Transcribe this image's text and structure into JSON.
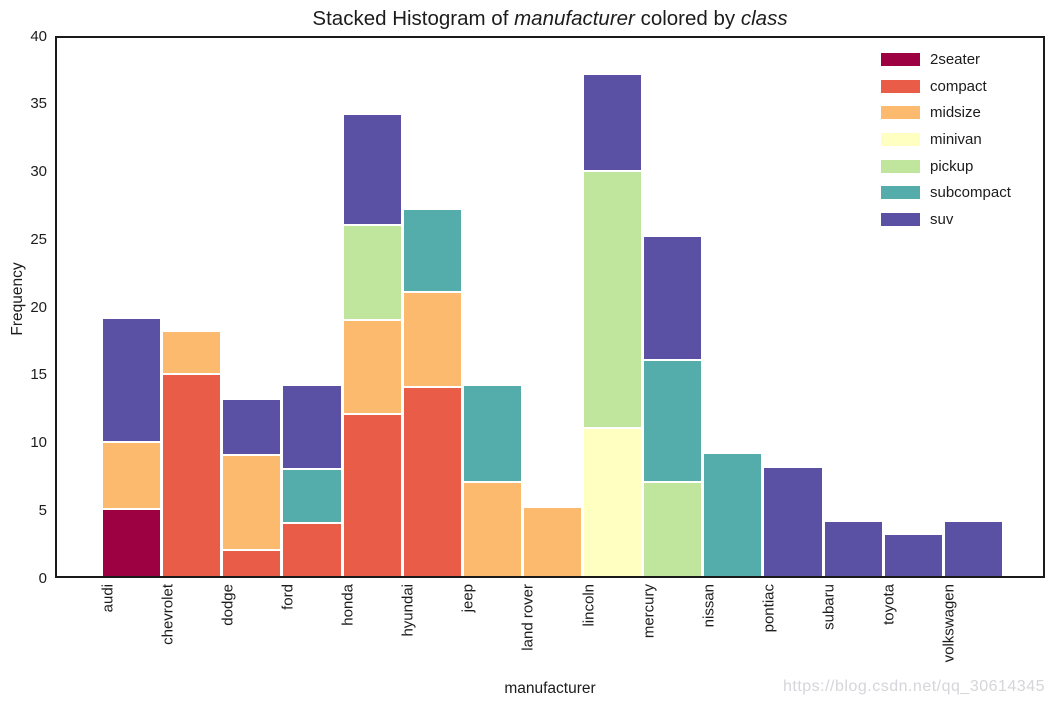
{
  "title": {
    "parts": [
      {
        "text": "Stacked Histogram of ",
        "italic": false
      },
      {
        "text": "manufacturer",
        "italic": true
      },
      {
        "text": " colored by ",
        "italic": false
      },
      {
        "text": "class",
        "italic": true
      }
    ],
    "plain": "Stacked Histogram of manufacturer colored by class"
  },
  "watermark": "https://blog.csdn.net/qq_30614345",
  "chart_data": {
    "type": "bar",
    "stacked": true,
    "title": "Stacked Histogram of manufacturer colored by class",
    "xlabel": "manufacturer",
    "ylabel": "Frequency",
    "ylim": [
      0,
      40
    ],
    "yticks": [
      0,
      5,
      10,
      15,
      20,
      25,
      30,
      35,
      40
    ],
    "grid": false,
    "legend_position": "upper right",
    "categories": [
      "audi",
      "chevrolet",
      "dodge",
      "ford",
      "honda",
      "hyundai",
      "jeep",
      "land rover",
      "lincoln",
      "mercury",
      "nissan",
      "pontiac",
      "subaru",
      "toyota",
      "volkswagen"
    ],
    "series": [
      {
        "name": "2seater",
        "color": "#9e0142",
        "values": [
          5,
          0,
          0,
          0,
          0,
          0,
          0,
          0,
          0,
          0,
          0,
          0,
          0,
          0,
          0
        ]
      },
      {
        "name": "compact",
        "color": "#e95c47",
        "values": [
          0,
          15,
          2,
          4,
          12,
          14,
          0,
          0,
          0,
          0,
          0,
          0,
          0,
          0,
          0
        ]
      },
      {
        "name": "midsize",
        "color": "#fcba6e",
        "values": [
          5,
          3,
          7,
          0,
          7,
          7,
          7,
          5,
          0,
          0,
          0,
          0,
          0,
          0,
          0
        ]
      },
      {
        "name": "minivan",
        "color": "#feffc0",
        "values": [
          0,
          0,
          0,
          0,
          0,
          0,
          0,
          0,
          11,
          0,
          0,
          0,
          0,
          0,
          0
        ]
      },
      {
        "name": "pickup",
        "color": "#c0e69e",
        "values": [
          0,
          0,
          0,
          0,
          7,
          0,
          0,
          0,
          19,
          7,
          0,
          0,
          0,
          0,
          0
        ]
      },
      {
        "name": "subcompact",
        "color": "#54adab",
        "values": [
          0,
          0,
          0,
          4,
          0,
          6,
          7,
          0,
          0,
          9,
          9,
          0,
          0,
          0,
          0
        ]
      },
      {
        "name": "suv",
        "color": "#5b51a4",
        "values": [
          9,
          0,
          4,
          6,
          8,
          0,
          0,
          0,
          7,
          9,
          0,
          8,
          4,
          3,
          4
        ]
      }
    ],
    "bar_totals": [
      19,
      18,
      13,
      14,
      34,
      27,
      14,
      5,
      37,
      25,
      9,
      8,
      4,
      3,
      4
    ]
  }
}
